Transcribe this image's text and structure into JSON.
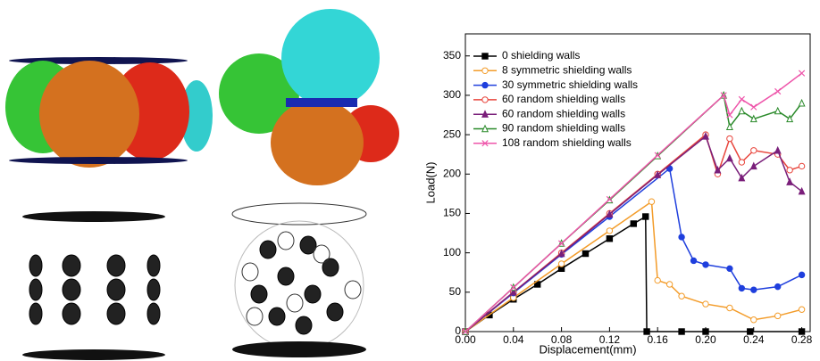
{
  "chart_data": {
    "type": "line",
    "xlabel": "Displacement(mm)",
    "ylabel": "Load(N)",
    "xlim": [
      0,
      0.287
    ],
    "ylim": [
      0,
      378
    ],
    "xticks": [
      {
        "value": 0,
        "label": "0.00"
      },
      0.04,
      0.08,
      0.12,
      0.16,
      {
        "value": 0.2,
        "label": "0.20"
      },
      0.24,
      0.28
    ],
    "yticks": [
      0,
      50,
      100,
      150,
      200,
      250,
      300,
      350
    ],
    "legend": "upper left",
    "series": [
      {
        "name": "0 shielding walls",
        "color": "#000000",
        "marker": "square",
        "x": [
          0,
          0.02,
          0.04,
          0.06,
          0.08,
          0.1,
          0.12,
          0.14,
          0.15,
          0.151,
          0.18,
          0.2,
          0.237,
          0.28
        ],
        "values": [
          0,
          21,
          41,
          60,
          80,
          99,
          118,
          137,
          146,
          0,
          0,
          0,
          0,
          0
        ]
      },
      {
        "name": "8 symmetric shielding walls",
        "color": "#f39c2a",
        "marker": "circle-open",
        "x": [
          0,
          0.04,
          0.08,
          0.12,
          0.155,
          0.16,
          0.17,
          0.18,
          0.2,
          0.22,
          0.24,
          0.26,
          0.28
        ],
        "values": [
          0,
          43,
          86,
          128,
          165,
          65,
          60,
          45,
          35,
          30,
          15,
          20,
          28
        ]
      },
      {
        "name": "30 symmetric shielding walls",
        "color": "#1f3fdd",
        "marker": "circle",
        "x": [
          0,
          0.04,
          0.08,
          0.12,
          0.17,
          0.18,
          0.19,
          0.2,
          0.22,
          0.23,
          0.24,
          0.26,
          0.28
        ],
        "values": [
          0,
          49,
          98,
          146,
          207,
          120,
          90,
          85,
          80,
          55,
          53,
          57,
          72
        ]
      },
      {
        "name": "60 random shielding walls",
        "color": "#e8453c",
        "marker": "circle-open",
        "x": [
          0,
          0.04,
          0.08,
          0.12,
          0.16,
          0.2,
          0.21,
          0.22,
          0.23,
          0.24,
          0.26,
          0.27,
          0.28
        ],
        "values": [
          0,
          50,
          100,
          150,
          200,
          250,
          200,
          245,
          215,
          230,
          225,
          205,
          210
        ]
      },
      {
        "name": "60 random shielding walls",
        "color": "#7a1f7a",
        "marker": "triangle",
        "x": [
          0,
          0.04,
          0.08,
          0.12,
          0.16,
          0.2,
          0.21,
          0.22,
          0.23,
          0.24,
          0.26,
          0.27,
          0.28
        ],
        "values": [
          0,
          50,
          99,
          149,
          199,
          248,
          205,
          220,
          195,
          210,
          230,
          190,
          178
        ]
      },
      {
        "name": "90 random shielding walls",
        "color": "#2a8a2a",
        "marker": "triangle-open",
        "x": [
          0,
          0.04,
          0.08,
          0.12,
          0.16,
          0.215,
          0.22,
          0.23,
          0.24,
          0.26,
          0.27,
          0.28
        ],
        "values": [
          0,
          56,
          112,
          167,
          223,
          300,
          260,
          280,
          270,
          280,
          270,
          290
        ]
      },
      {
        "name": "108 random shielding walls",
        "color": "#ee55aa",
        "marker": "cross",
        "x": [
          0,
          0.04,
          0.08,
          0.12,
          0.16,
          0.215,
          0.22,
          0.23,
          0.24,
          0.26,
          0.28
        ],
        "values": [
          0,
          56,
          112,
          168,
          224,
          300,
          275,
          295,
          285,
          305,
          328
        ]
      }
    ]
  }
}
